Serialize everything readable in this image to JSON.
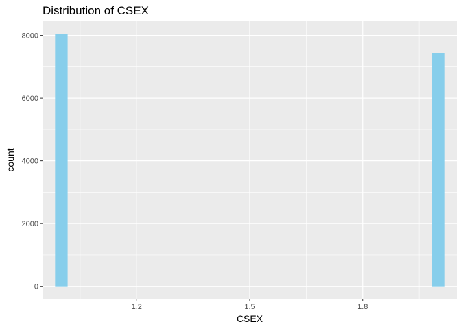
{
  "chart_data": {
    "type": "bar",
    "title": "Distribution of CSEX",
    "xlabel": "CSEX",
    "ylabel": "count",
    "x_ticks": [
      1.2,
      1.5,
      1.8
    ],
    "x_tick_labels": [
      "1.2",
      "1.5",
      "1.8"
    ],
    "y_ticks": [
      0,
      2000,
      4000,
      6000,
      8000
    ],
    "y_tick_labels": [
      "0",
      "2000",
      "4000",
      "6000",
      "8000"
    ],
    "xlim": [
      0.95,
      2.05
    ],
    "ylim": [
      -400,
      8450
    ],
    "bin_width": 0.0333,
    "bars": [
      {
        "x": 1.0,
        "value": 8050
      },
      {
        "x": 2.0,
        "value": 7430
      }
    ],
    "grid": true,
    "colors": {
      "bar": "#87CEEB",
      "panel": "#EBEBEB",
      "grid_major": "#FFFFFF",
      "tick_text": "#4D4D4D"
    }
  }
}
